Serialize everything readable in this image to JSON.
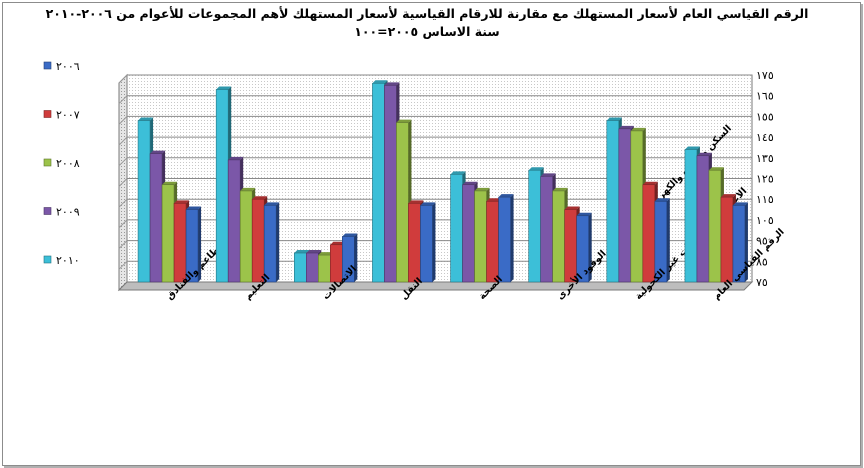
{
  "title_line1": "الرقم القياسي العام لأسعار المستهلك مع مقارنة للارقام القياسية لأسعار المستهلك لأهم المجموعات للأعوام من ٢٠٠٦-٢٠١٠",
  "title_line2": "سنة الاساس  ٢٠٠٥=١٠٠",
  "colors": {
    "2006": "#3a6bc6",
    "2007": "#d03c3c",
    "2008": "#9cc34a",
    "2009": "#7b57a8",
    "2010": "#3cbfd8"
  },
  "chart_data": {
    "type": "bar",
    "title": "الرقم القياسي العام لأسعار المستهلك مع مقارنة للارقام القياسية لأسعار المستهلك لأهم المجموعات للأعوام من ٢٠٠٦-٢٠١٠ — سنة الاساس ٢٠٠٥=١٠٠",
    "xlabel": "",
    "ylabel": "",
    "ylim": [
      75,
      175
    ],
    "y_ticks": [
      75,
      85,
      95,
      105,
      115,
      125,
      135,
      145,
      155,
      165,
      175
    ],
    "y_tick_labels": [
      "٧٥",
      "٨٥",
      "٩٥",
      "١٠٥",
      "١١٥",
      "١٢٥",
      "١٣٥",
      "١٤٥",
      "١٥٥",
      "١٦٥",
      "١٧٥"
    ],
    "grid": true,
    "legend_position": "left",
    "categories": [
      "المطاعم والفنادق",
      "التعليم",
      "الاتصالات",
      "النقل",
      "الصحة",
      "السكن والمياه والكهرباء والغاز وأنواع الوقود الأخرى",
      "الاغذية والمشروبات غير الكحولية",
      "الرقم القياسي العام"
    ],
    "series": [
      {
        "name": "٢٠١٠",
        "key": "2010",
        "values": [
          153,
          168,
          89,
          171,
          127,
          129,
          153,
          139
        ]
      },
      {
        "name": "٢٠٠٩",
        "key": "2009",
        "values": [
          137,
          134,
          89,
          170,
          122,
          126,
          149,
          136
        ]
      },
      {
        "name": "٢٠٠٨",
        "key": "2008",
        "values": [
          122,
          119,
          88,
          152,
          119,
          119,
          148,
          129
        ]
      },
      {
        "name": "٢٠٠٧",
        "key": "2007",
        "values": [
          113,
          115,
          93,
          113,
          114,
          110,
          122,
          116
        ]
      },
      {
        "name": "٢٠٠٦",
        "key": "2006",
        "values": [
          110,
          112,
          97,
          112,
          116,
          107,
          114,
          112
        ]
      }
    ],
    "legend_order": [
      "٢٠٠٦",
      "٢٠٠٧",
      "٢٠٠٨",
      "٢٠٠٩",
      "٢٠١٠"
    ]
  }
}
